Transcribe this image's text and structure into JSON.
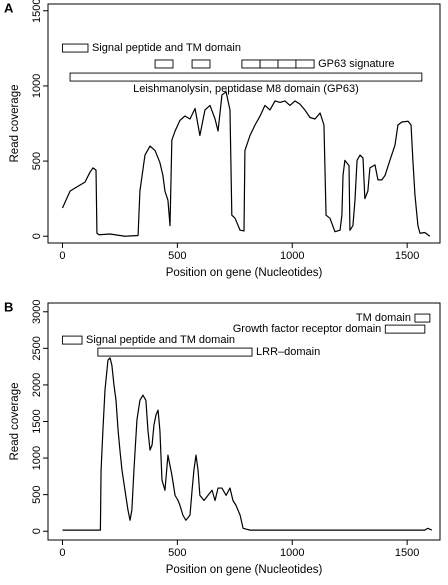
{
  "chart_data": [
    {
      "type": "line",
      "panel": "A",
      "xlabel": "Position on gene (Nucleotides)",
      "ylabel": "Read coverage",
      "xlim": [
        -63,
        1643
      ],
      "ylim": [
        -45,
        1545
      ],
      "xticks": [
        0,
        500,
        1000,
        1500
      ],
      "yticks": [
        0,
        500,
        1000,
        1500
      ],
      "color": "#000000",
      "x": [
        0,
        33,
        54,
        76,
        98,
        120,
        133,
        146,
        150,
        159,
        207,
        272,
        329,
        337,
        359,
        381,
        403,
        424,
        437,
        446,
        459,
        468,
        476,
        490,
        511,
        533,
        555,
        577,
        598,
        620,
        642,
        664,
        677,
        694,
        712,
        729,
        737,
        751,
        773,
        790,
        794,
        816,
        838,
        860,
        881,
        903,
        925,
        947,
        968,
        990,
        1012,
        1033,
        1055,
        1077,
        1099,
        1121,
        1138,
        1147,
        1164,
        1186,
        1208,
        1216,
        1221,
        1229,
        1247,
        1251,
        1264,
        1273,
        1282,
        1295,
        1308,
        1316,
        1329,
        1338,
        1360,
        1373,
        1390,
        1404,
        1425,
        1447,
        1460,
        1477,
        1504,
        1517,
        1525,
        1534,
        1547,
        1556,
        1577,
        1599
      ],
      "values": [
        188,
        300,
        320,
        340,
        360,
        427,
        455,
        440,
        20,
        10,
        15,
        0,
        5,
        300,
        540,
        600,
        570,
        490,
        405,
        300,
        240,
        70,
        640,
        700,
        770,
        800,
        780,
        850,
        670,
        840,
        870,
        780,
        700,
        940,
        960,
        840,
        140,
        120,
        40,
        35,
        570,
        670,
        740,
        800,
        870,
        840,
        900,
        890,
        900,
        870,
        900,
        880,
        840,
        790,
        780,
        820,
        740,
        140,
        120,
        30,
        40,
        140,
        405,
        505,
        470,
        40,
        70,
        240,
        505,
        540,
        520,
        250,
        300,
        455,
        475,
        375,
        375,
        405,
        505,
        605,
        740,
        760,
        765,
        740,
        505,
        275,
        70,
        20,
        25,
        0
      ],
      "domains": [
        {
          "label": "Signal peptide and TM domain",
          "segments": [
            [
              0,
              111
            ]
          ],
          "y": 1252
        },
        {
          "label": "GP63 signature",
          "segments": [
            [
              403,
              481
            ],
            [
              564,
              642
            ],
            [
              781,
              860
            ],
            [
              860,
              938
            ],
            [
              938,
              1016
            ],
            [
              1016,
              1095
            ]
          ],
          "y": 1146
        },
        {
          "label": "Leishmanolysin, peptidase M8 domain (GP63)",
          "segments": [
            [
              33,
              1564
            ]
          ],
          "y": 1059
        }
      ]
    },
    {
      "type": "line",
      "panel": "B",
      "xlabel": "Position on gene (Nucleotides)",
      "ylabel": "Read coverage",
      "xlim": [
        -63,
        1643
      ],
      "ylim": [
        -120,
        3120
      ],
      "xticks": [
        0,
        500,
        1000,
        1500
      ],
      "yticks": [
        0,
        500,
        1000,
        1500,
        2000,
        2500,
        3000
      ],
      "color": "#000000",
      "x": [
        0,
        165,
        168,
        176,
        185,
        198,
        207,
        215,
        224,
        233,
        242,
        250,
        259,
        272,
        285,
        294,
        302,
        311,
        324,
        337,
        350,
        363,
        372,
        381,
        390,
        398,
        407,
        416,
        424,
        433,
        446,
        459,
        476,
        490,
        503,
        511,
        524,
        537,
        555,
        564,
        572,
        581,
        590,
        598,
        616,
        633,
        651,
        664,
        677,
        694,
        712,
        729,
        742,
        755,
        773,
        786,
        816,
        1577,
        1590,
        1608
      ],
      "values": [
        15,
        15,
        835,
        1380,
        1930,
        2340,
        2370,
        2270,
        2000,
        1790,
        1380,
        1110,
        835,
        560,
        290,
        150,
        290,
        835,
        1520,
        1790,
        1860,
        1790,
        1380,
        1110,
        1180,
        1450,
        1590,
        1655,
        1380,
        700,
        560,
        1040,
        770,
        490,
        420,
        355,
        220,
        150,
        220,
        560,
        835,
        1040,
        835,
        490,
        420,
        490,
        560,
        420,
        590,
        590,
        490,
        590,
        420,
        355,
        220,
        40,
        15,
        15,
        40,
        15
      ],
      "domains": [
        {
          "label": "TM domain",
          "segments": [
            [
              1534,
              1599
            ]
          ],
          "y": 2914
        },
        {
          "label": "Growth factor receptor domain",
          "segments": [
            [
              1405,
              1577
            ]
          ],
          "y": 2763
        },
        {
          "label": "Signal peptide and TM domain",
          "segments": [
            [
              0,
              85
            ]
          ],
          "y": 2613
        },
        {
          "label": "LRR–domain",
          "segments": [
            [
              154,
              825
            ]
          ],
          "y": 2449
        }
      ]
    }
  ]
}
